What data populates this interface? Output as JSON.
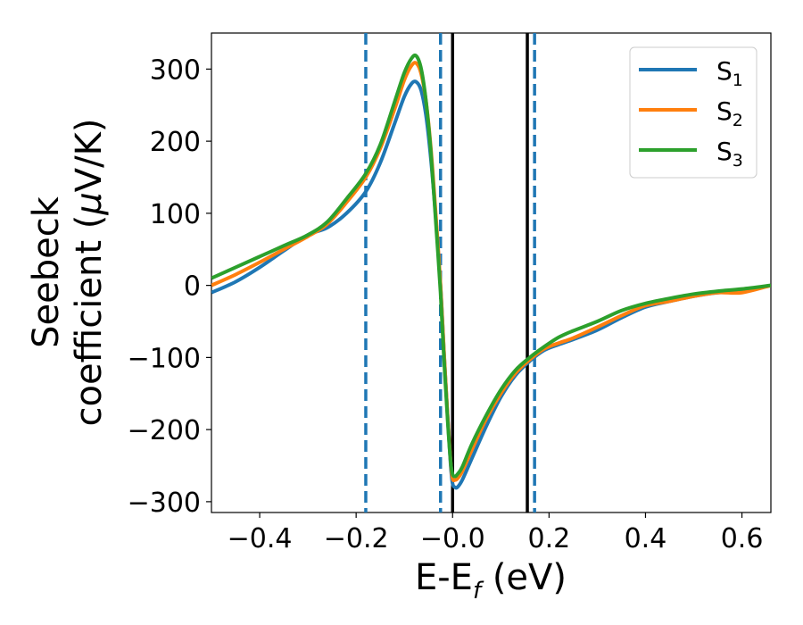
{
  "chart_data": {
    "type": "line",
    "xlabel": {
      "main": "E-E",
      "sub": "f",
      "unit": " (eV)"
    },
    "ylabel": {
      "line1": "Seebeck",
      "line2": "coefficient  (",
      "mu": "μ",
      "unit": "V/K)"
    },
    "xlim": [
      -0.5,
      0.66
    ],
    "ylim": [
      -315,
      350
    ],
    "xticks": [
      -0.4,
      -0.2,
      0.0,
      0.2,
      0.4,
      0.6
    ],
    "xtick_labels": [
      "−0.4",
      "−0.2",
      "−0.0",
      "0.2",
      "0.4",
      "0.6"
    ],
    "yticks": [
      -300,
      -200,
      -100,
      0,
      100,
      200,
      300
    ],
    "ytick_labels": [
      "−300",
      "−200",
      "−100",
      "0",
      "100",
      "200",
      "300"
    ],
    "legend_position": "top-right",
    "grid": false,
    "series": [
      {
        "name": "S",
        "sub": "1",
        "color": "#1f77b4",
        "x": [
          -0.5,
          -0.45,
          -0.4,
          -0.35,
          -0.3,
          -0.26,
          -0.22,
          -0.18,
          -0.15,
          -0.12,
          -0.1,
          -0.085,
          -0.075,
          -0.065,
          -0.055,
          -0.045,
          -0.035,
          -0.025,
          -0.018,
          -0.01,
          -0.004,
          0.0,
          0.005,
          0.01,
          0.02,
          0.04,
          0.07,
          0.1,
          0.13,
          0.16,
          0.19,
          0.22,
          0.25,
          0.3,
          0.35,
          0.4,
          0.45,
          0.5,
          0.55,
          0.6,
          0.66
        ],
        "y": [
          -10,
          5,
          25,
          48,
          70,
          80,
          100,
          130,
          170,
          225,
          262,
          280,
          282,
          270,
          235,
          175,
          95,
          0,
          -90,
          -185,
          -250,
          -275,
          -280,
          -280,
          -270,
          -240,
          -195,
          -155,
          -125,
          -105,
          -90,
          -82,
          -75,
          -62,
          -45,
          -30,
          -22,
          -15,
          -10,
          -8,
          0
        ]
      },
      {
        "name": "S",
        "sub": "2",
        "color": "#ff7f0e",
        "x": [
          -0.5,
          -0.45,
          -0.4,
          -0.35,
          -0.3,
          -0.26,
          -0.22,
          -0.18,
          -0.15,
          -0.12,
          -0.1,
          -0.085,
          -0.075,
          -0.065,
          -0.055,
          -0.045,
          -0.035,
          -0.025,
          -0.018,
          -0.01,
          -0.004,
          0.0,
          0.005,
          0.01,
          0.02,
          0.04,
          0.07,
          0.1,
          0.13,
          0.16,
          0.19,
          0.22,
          0.25,
          0.3,
          0.35,
          0.4,
          0.45,
          0.5,
          0.55,
          0.6,
          0.66
        ],
        "y": [
          0,
          15,
          32,
          50,
          68,
          85,
          115,
          150,
          190,
          245,
          285,
          305,
          308,
          293,
          255,
          190,
          100,
          0,
          -90,
          -185,
          -245,
          -268,
          -270,
          -268,
          -258,
          -228,
          -185,
          -150,
          -122,
          -103,
          -88,
          -80,
          -73,
          -58,
          -42,
          -28,
          -22,
          -15,
          -10,
          -10,
          0
        ]
      },
      {
        "name": "S",
        "sub": "3",
        "color": "#2ca02c",
        "x": [
          -0.5,
          -0.45,
          -0.4,
          -0.35,
          -0.3,
          -0.26,
          -0.22,
          -0.18,
          -0.15,
          -0.12,
          -0.1,
          -0.085,
          -0.075,
          -0.065,
          -0.055,
          -0.045,
          -0.035,
          -0.025,
          -0.018,
          -0.01,
          -0.004,
          0.0,
          0.005,
          0.01,
          0.02,
          0.04,
          0.07,
          0.1,
          0.13,
          0.16,
          0.19,
          0.22,
          0.25,
          0.3,
          0.35,
          0.4,
          0.45,
          0.5,
          0.55,
          0.6,
          0.66
        ],
        "y": [
          10,
          25,
          40,
          55,
          70,
          88,
          120,
          155,
          195,
          255,
          295,
          315,
          318,
          300,
          255,
          185,
          90,
          -10,
          -100,
          -190,
          -245,
          -262,
          -265,
          -262,
          -252,
          -220,
          -180,
          -145,
          -118,
          -100,
          -85,
          -72,
          -63,
          -50,
          -35,
          -25,
          -18,
          -12,
          -8,
          -5,
          0
        ]
      }
    ],
    "vlines": [
      {
        "x": -0.18,
        "color": "#1f77b4",
        "style": "dashed"
      },
      {
        "x": -0.025,
        "color": "#1f77b4",
        "style": "dashed"
      },
      {
        "x": 0.0,
        "color": "#000000",
        "style": "solid"
      },
      {
        "x": 0.155,
        "color": "#000000",
        "style": "solid"
      },
      {
        "x": 0.17,
        "color": "#1f77b4",
        "style": "dashed"
      }
    ]
  }
}
